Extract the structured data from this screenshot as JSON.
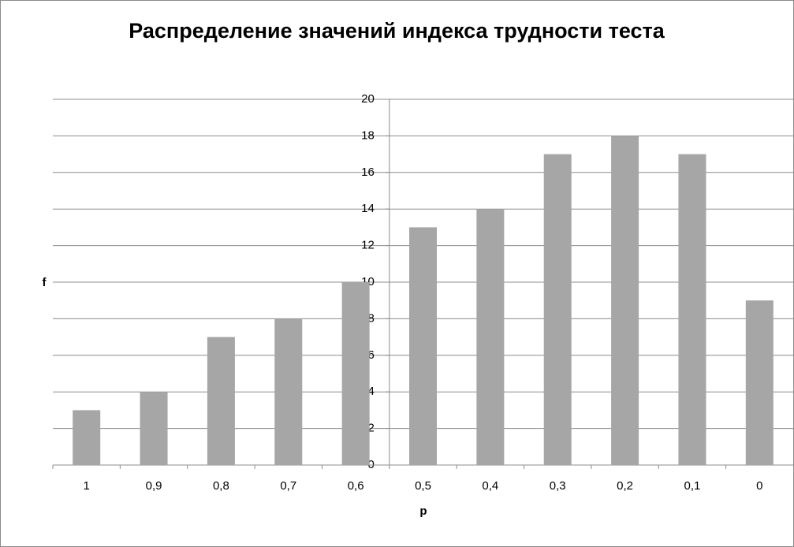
{
  "chart_data": {
    "type": "bar",
    "title": "Распределение значений индекса трудности теста",
    "x_label": "p",
    "y_label": "f",
    "categories": [
      "1",
      "0,9",
      "0,8",
      "0,7",
      "0,6",
      "0,5",
      "0,4",
      "0,3",
      "0,2",
      "0,1",
      "0"
    ],
    "values": [
      3,
      4,
      7,
      8,
      10,
      13,
      14,
      17,
      18,
      17,
      9
    ],
    "color": "#a6a6a6",
    "ylim": [
      0,
      20
    ],
    "yticks": [
      0,
      2,
      4,
      6,
      8,
      10,
      12,
      14,
      16,
      18,
      20
    ],
    "grid": true
  }
}
